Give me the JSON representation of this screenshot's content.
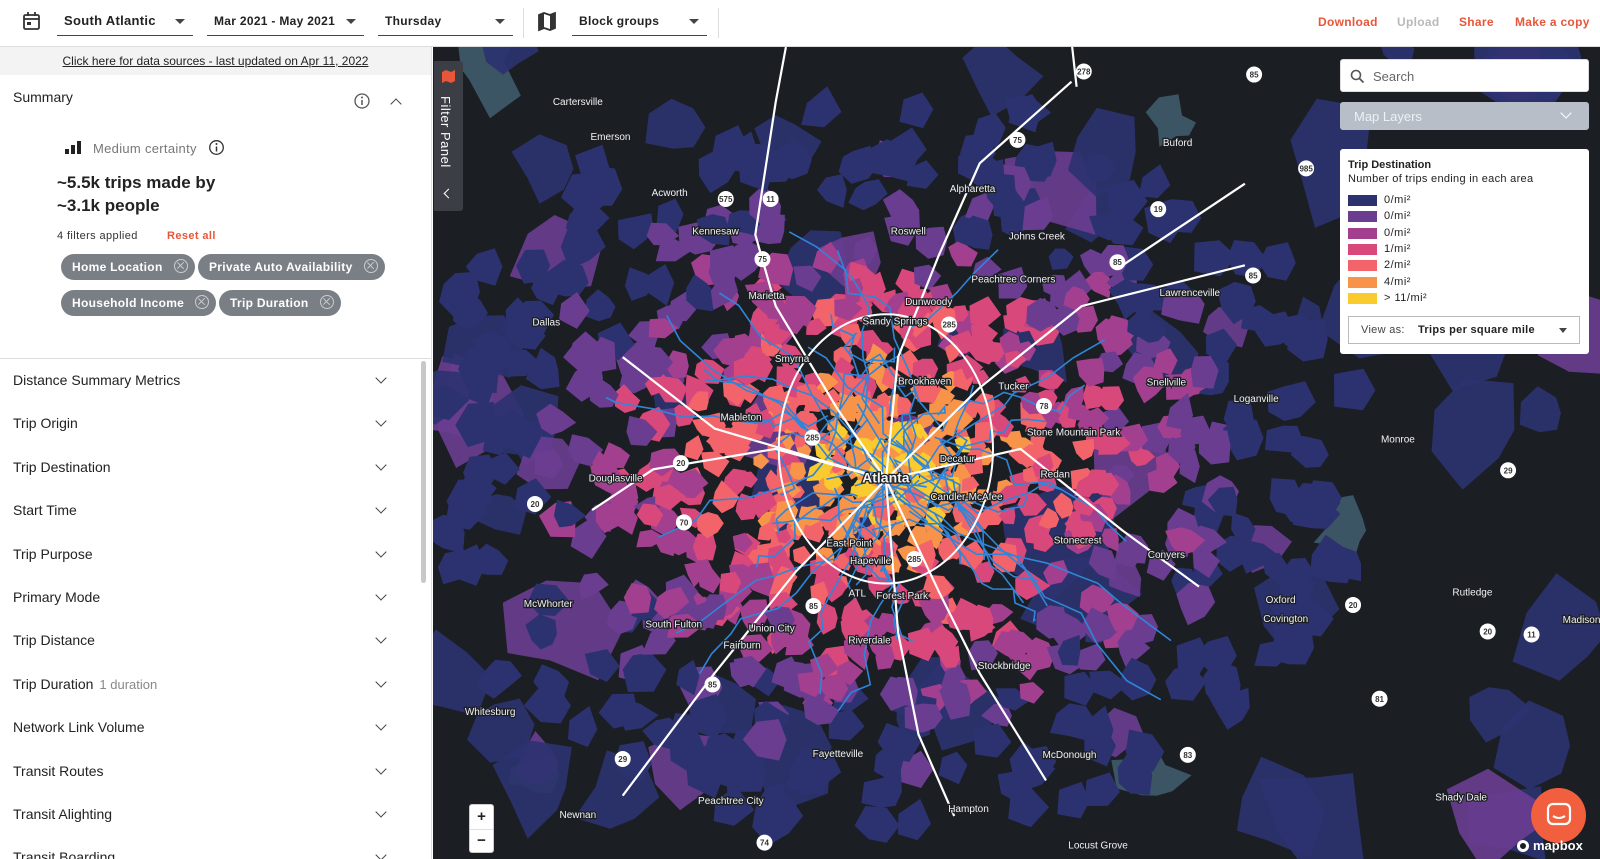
{
  "toolbar": {
    "region": "South Atlantic",
    "date_range": "Mar 2021 - May 2021",
    "day": "Thursday",
    "geography": "Block groups",
    "actions": [
      "Download",
      "Upload",
      "Share",
      "Make a copy"
    ]
  },
  "data_sources_link": "Click here for data sources - last updated on Apr 11, 2022",
  "summary": {
    "title": "Summary",
    "certainty": "Medium certainty",
    "headline_trips": "~5.5k trips made by",
    "headline_people": "~3.1k people",
    "filters_applied": "4 filters applied",
    "reset": "Reset all",
    "chips": [
      "Home Location",
      "Private Auto Availability",
      "Household Income",
      "Trip Duration"
    ]
  },
  "sections": [
    {
      "label": "Distance Summary Metrics"
    },
    {
      "label": "Trip Origin"
    },
    {
      "label": "Trip Destination"
    },
    {
      "label": "Start Time"
    },
    {
      "label": "Trip Purpose"
    },
    {
      "label": "Primary Mode"
    },
    {
      "label": "Trip Distance"
    },
    {
      "label": "Trip Duration",
      "note": "1 duration"
    },
    {
      "label": "Network Link Volume"
    },
    {
      "label": "Transit Routes"
    },
    {
      "label": "Transit Alighting"
    },
    {
      "label": "Transit Boarding"
    }
  ],
  "filter_panel": "Filter Panel",
  "search_placeholder": "Search",
  "map_layers": "Map Layers",
  "legend": {
    "title": "Trip Destination",
    "subtitle": "Number of trips ending in each area",
    "items": [
      {
        "label": "0/mi²",
        "color": "#2c3270"
      },
      {
        "label": "0/mi²",
        "color": "#6a3d91"
      },
      {
        "label": "0/mi²",
        "color": "#a2408f"
      },
      {
        "label": "1/mi²",
        "color": "#d9487b"
      },
      {
        "label": "2/mi²",
        "color": "#f2636a"
      },
      {
        "label": "4/mi²",
        "color": "#f8944a"
      },
      {
        "label": "> 11/mi²",
        "color": "#f9cb2e"
      }
    ],
    "view_as_label": "View as:",
    "view_as_value": "Trips per square mile"
  },
  "map_labels": [
    "Cartersville",
    "Emerson",
    "Buford",
    "Acworth",
    "Kennesaw",
    "Alpharetta",
    "Roswell",
    "Johns Creek",
    "Peachtree Corners",
    "Marietta",
    "Dunwoody",
    "Lawrenceville",
    "Dallas",
    "Sandy Springs",
    "Smyrna",
    "Brookhaven",
    "Tucker",
    "Snellville",
    "Loganville",
    "Mableton",
    "Stone Mountain Park",
    "Monroe",
    "Decatur",
    "Atlanta",
    "Redan",
    "Douglasville",
    "Candler-McAfee",
    "Stonecrest",
    "Conyers",
    "East Point",
    "Hapeville",
    "ATL",
    "Forest Park",
    "Oxford",
    "Rutledge",
    "McWhorter",
    "Covington",
    "Madison",
    "South Fulton",
    "Union City",
    "Fairburn",
    "Riverdale",
    "Stockbridge",
    "Whitesburg",
    "Fayetteville",
    "McDonough",
    "Peachtree City",
    "Shady Dale",
    "Newnan",
    "Hampton",
    "Locust Grove"
  ],
  "highway_shields": [
    "75",
    "85",
    "285",
    "20",
    "20",
    "285",
    "85",
    "85",
    "285",
    "78",
    "29",
    "74",
    "70",
    "20",
    "20",
    "11",
    "81",
    "83",
    "29",
    "85",
    "985",
    "85",
    "19",
    "75",
    "575",
    "11",
    "278"
  ],
  "zoom": [
    "+",
    "−"
  ],
  "attribution": "mapbox"
}
